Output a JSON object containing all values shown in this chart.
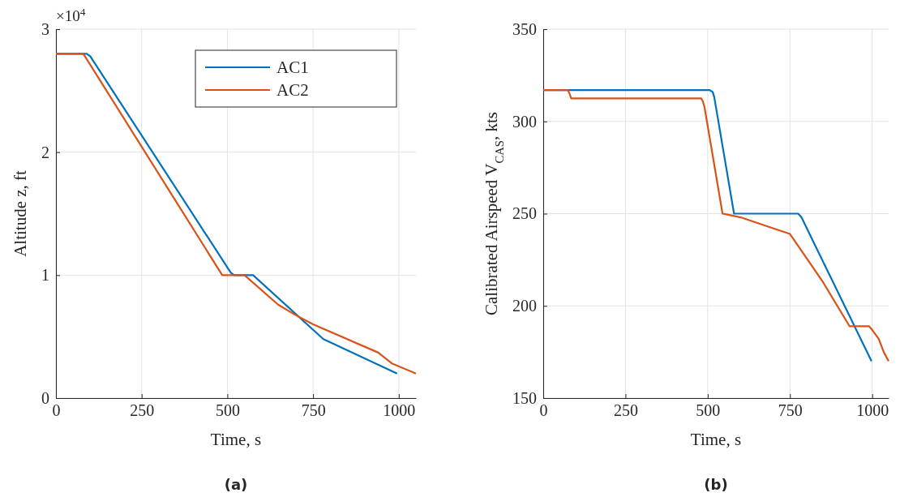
{
  "chart_data": [
    {
      "type": "line",
      "title": "(a)",
      "xlabel": "Time, s",
      "ylabel": "Altitude z, ft",
      "annotations": [
        "×10$^{4}$"
      ],
      "xlim": [
        0,
        1050
      ],
      "xticks": [
        0,
        250,
        500,
        750,
        1000
      ],
      "ylim": [
        0,
        3
      ],
      "yticks": [
        0,
        1,
        2,
        3
      ],
      "grid": true,
      "legend": "top right",
      "line_style": "solid",
      "series": [
        {
          "name": "AC1",
          "color": "#0072bd",
          "x": [
            0,
            90,
            100,
            510,
            520,
            575,
            780,
            995
          ],
          "values": [
            2.8,
            2.8,
            2.78,
            1.02,
            1.0,
            1.0,
            0.48,
            0.2
          ]
        },
        {
          "name": "AC2",
          "color": "#d95319",
          "x": [
            0,
            80,
            485,
            550,
            648,
            696,
            750,
            940,
            981,
            1050
          ],
          "values": [
            2.8,
            2.8,
            1.0,
            1.0,
            0.76,
            0.68,
            0.6,
            0.37,
            0.28,
            0.2
          ]
        }
      ]
    },
    {
      "type": "line",
      "title": "(b)",
      "xlabel": "Time, s",
      "ylabel": "Calibrated Airspeed V$_{CAS}$, kts",
      "xlim": [
        0,
        1050
      ],
      "xticks": [
        0,
        250,
        500,
        750,
        1000
      ],
      "ylim": [
        150,
        350
      ],
      "yticks": [
        150,
        200,
        250,
        300,
        350
      ],
      "grid": true,
      "legend": false,
      "line_style": "solid",
      "series": [
        {
          "color": "#0072bd",
          "x": [
            0,
            505,
            515,
            520,
            580,
            775,
            785,
            998
          ],
          "values": [
            317,
            317,
            316,
            313,
            250,
            250,
            248,
            170
          ]
        },
        {
          "color": "#d95319",
          "x": [
            0,
            75,
            80,
            85,
            480,
            485,
            490,
            545,
            560,
            600,
            700,
            750,
            850,
            931,
            990,
            1000,
            1020,
            1035,
            1050
          ],
          "values": [
            317,
            317,
            315,
            312.5,
            312.5,
            311,
            308,
            250,
            249.5,
            248,
            242,
            239,
            213,
            189,
            189,
            187,
            182,
            175,
            170
          ]
        }
      ]
    }
  ]
}
